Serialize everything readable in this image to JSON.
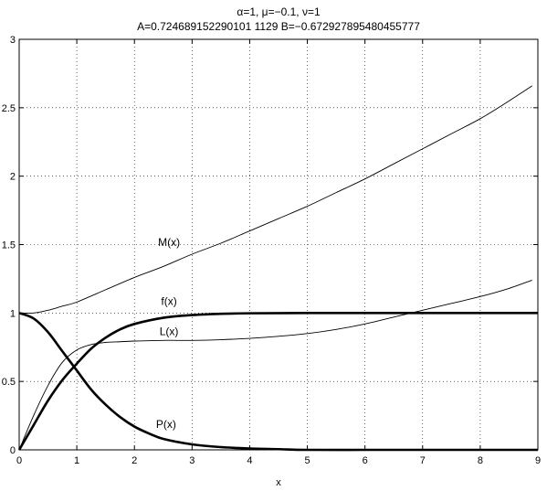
{
  "chart_data": {
    "type": "line",
    "title": "α=1, μ=−0.1, ν=1",
    "subtitle": "A=0.724689152290101 1129   B=−0.672927895480455777",
    "xlabel": "x",
    "ylabel": "",
    "xlim": [
      0,
      9
    ],
    "ylim": [
      0,
      3
    ],
    "grid": true,
    "x_ticks": [
      0,
      1,
      2,
      3,
      4,
      5,
      6,
      7,
      8,
      9
    ],
    "y_ticks": [
      0,
      0.5,
      1,
      1.5,
      2,
      2.5,
      3
    ],
    "x_tick_labels": [
      "0",
      "1",
      "2",
      "3",
      "4",
      "5",
      "6",
      "7",
      "8",
      "9"
    ],
    "y_tick_labels": [
      "0",
      "0.5",
      "1",
      "1.5",
      "2",
      "2.5",
      "3"
    ],
    "series": [
      {
        "name": "M(x)",
        "line": "thin",
        "x": [
          0,
          0.25,
          0.5,
          0.75,
          1,
          1.5,
          2,
          2.5,
          3,
          3.5,
          4,
          4.5,
          5,
          5.5,
          6,
          6.5,
          7,
          7.5,
          8,
          8.5,
          8.9
        ],
        "y": [
          1.0,
          1.0,
          1.02,
          1.05,
          1.08,
          1.17,
          1.26,
          1.34,
          1.43,
          1.51,
          1.6,
          1.69,
          1.78,
          1.88,
          1.98,
          2.09,
          2.2,
          2.31,
          2.42,
          2.55,
          2.66
        ]
      },
      {
        "name": "f(x)",
        "line": "thick",
        "x": [
          0,
          0.25,
          0.5,
          0.75,
          1,
          1.25,
          1.5,
          1.75,
          2,
          2.5,
          3,
          3.5,
          4,
          5,
          6,
          7,
          8,
          9
        ],
        "y": [
          0.0,
          0.18,
          0.36,
          0.51,
          0.63,
          0.74,
          0.82,
          0.88,
          0.92,
          0.965,
          0.985,
          0.994,
          0.998,
          1.0,
          1.0,
          1.0,
          1.0,
          1.0
        ]
      },
      {
        "name": "L(x)",
        "line": "thin",
        "x": [
          0,
          0.25,
          0.5,
          0.75,
          1,
          1.25,
          1.5,
          1.75,
          2,
          2.5,
          3,
          3.5,
          4,
          4.5,
          5,
          5.5,
          6,
          6.5,
          7,
          7.5,
          8,
          8.5,
          8.9
        ],
        "y": [
          0.0,
          0.25,
          0.47,
          0.64,
          0.73,
          0.77,
          0.785,
          0.79,
          0.795,
          0.8,
          0.8,
          0.805,
          0.815,
          0.83,
          0.85,
          0.88,
          0.92,
          0.97,
          1.02,
          1.07,
          1.12,
          1.18,
          1.24
        ]
      },
      {
        "name": "P(x)",
        "line": "thick",
        "x": [
          0,
          0.25,
          0.5,
          0.75,
          1,
          1.25,
          1.5,
          1.75,
          2,
          2.25,
          2.5,
          3,
          3.5,
          4,
          4.5,
          5,
          6,
          7,
          8,
          9
        ],
        "y": [
          1.0,
          0.96,
          0.86,
          0.72,
          0.58,
          0.44,
          0.33,
          0.24,
          0.17,
          0.12,
          0.08,
          0.04,
          0.02,
          0.01,
          0.005,
          0.0,
          0.0,
          0.0,
          0.0,
          0.0
        ]
      }
    ],
    "annotations": [
      {
        "text": "M(x)",
        "x": 2.6,
        "y": 1.49
      },
      {
        "text": "f(x)",
        "x": 2.6,
        "y": 1.06
      },
      {
        "text": "L(x)",
        "x": 2.6,
        "y": 0.84
      },
      {
        "text": "P(x)",
        "x": 2.55,
        "y": 0.16
      }
    ]
  }
}
